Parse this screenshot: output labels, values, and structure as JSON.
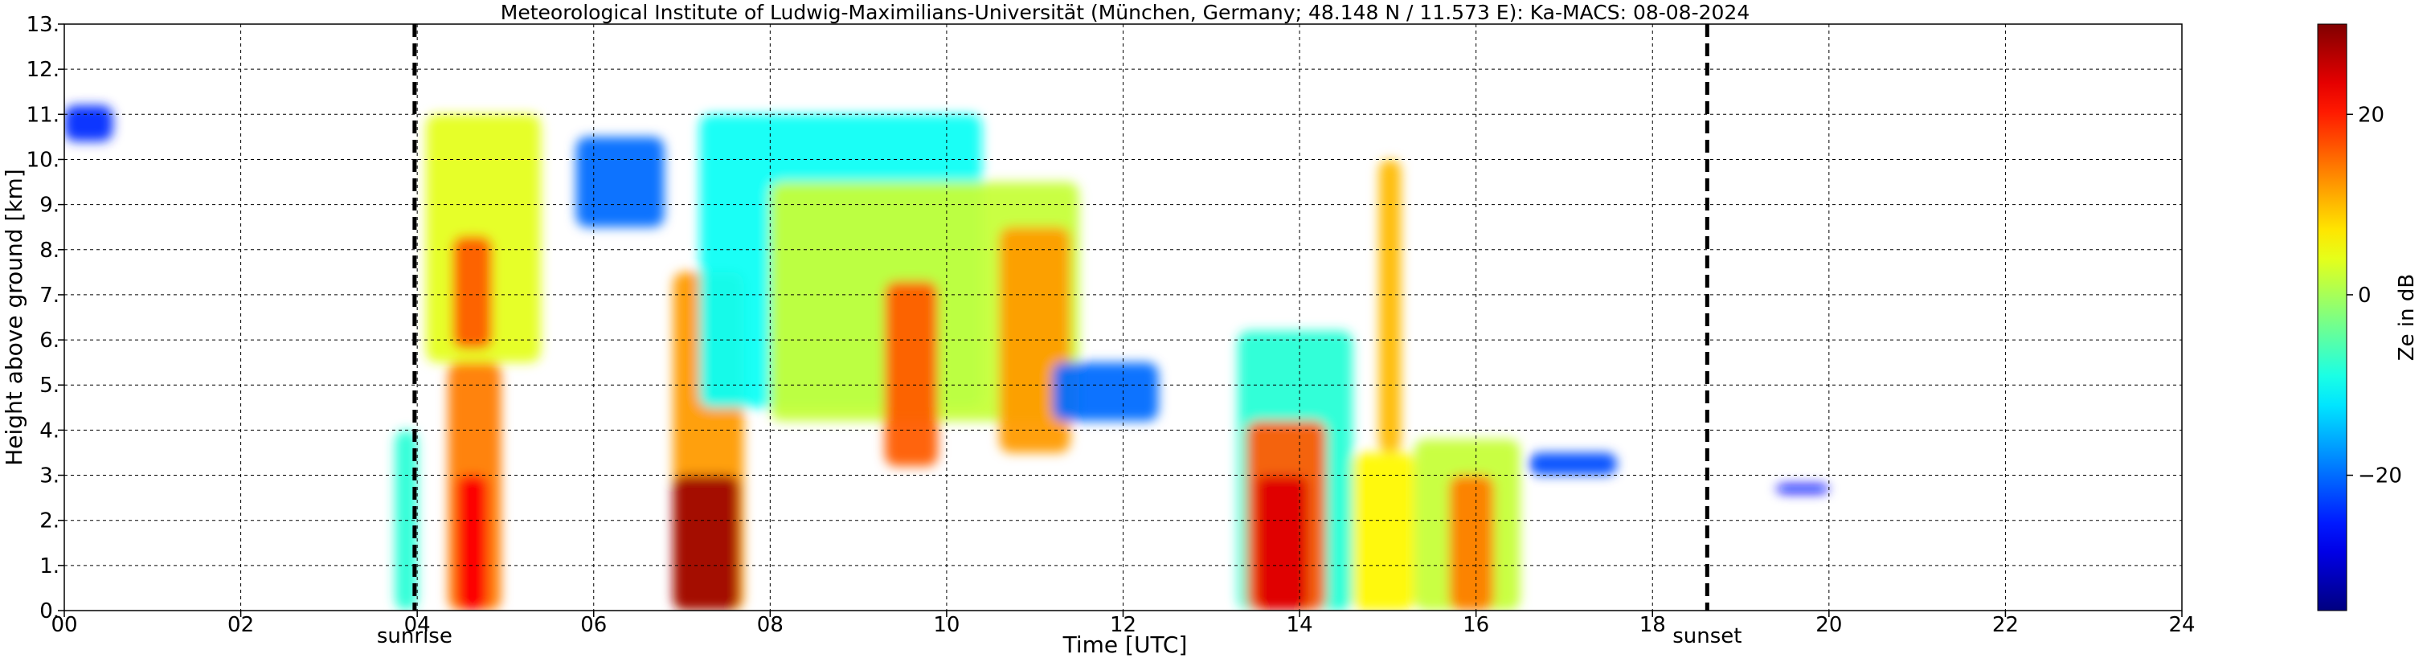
{
  "chart_data": [
    {
      "type": "heatmap",
      "title": "Meteorological Institute of Ludwig-Maximilians-Universität (München, Germany; 48.148 N / 11.573 E):    Ka-MACS: 08-08-2024",
      "xlabel": "Time [UTC]",
      "ylabel": "Height above ground [km]",
      "xlim": [
        0,
        24
      ],
      "ylim": [
        0,
        13
      ],
      "x_ticks": [
        "00",
        "02",
        "04",
        "06",
        "08",
        "10",
        "12",
        "14",
        "16",
        "18",
        "20",
        "22",
        "24"
      ],
      "y_ticks": [
        "0.",
        "1.",
        "2.",
        "3.",
        "4.",
        "5.",
        "6.",
        "7.",
        "8.",
        "9.",
        "10.",
        "11.",
        "12.",
        "13."
      ],
      "grid": "dashed, every 2 h on x and every 1 km on y",
      "colormap": "jet",
      "annotations": [
        {
          "label": "sunrise",
          "x": 3.97,
          "style": "dashed vertical line"
        },
        {
          "label": "sunset",
          "x": 18.62,
          "style": "dashed vertical line"
        }
      ],
      "echoes": [
        {
          "t0": 0.0,
          "t1": 0.55,
          "z0": 10.4,
          "z1": 11.2,
          "ze": -24
        },
        {
          "t0": 3.75,
          "t1": 4.0,
          "z0": 0.0,
          "z1": 4.0,
          "ze": -8
        },
        {
          "t0": 4.1,
          "t1": 5.4,
          "z0": 5.5,
          "z1": 11.0,
          "ze": 4
        },
        {
          "t0": 4.4,
          "t1": 4.85,
          "z0": 5.8,
          "z1": 8.3,
          "ze": 16
        },
        {
          "t0": 4.35,
          "t1": 4.95,
          "z0": 0.0,
          "z1": 5.5,
          "ze": 14
        },
        {
          "t0": 4.45,
          "t1": 4.8,
          "z0": 0.0,
          "z1": 3.0,
          "ze": 22
        },
        {
          "t0": 5.8,
          "t1": 6.8,
          "z0": 8.5,
          "z1": 10.5,
          "ze": -20
        },
        {
          "t0": 6.9,
          "t1": 7.7,
          "z0": 0.0,
          "z1": 7.5,
          "ze": 12
        },
        {
          "t0": 6.9,
          "t1": 7.65,
          "z0": 0.0,
          "z1": 3.0,
          "ze": 28
        },
        {
          "t0": 7.2,
          "t1": 10.4,
          "z0": 4.5,
          "z1": 11.0,
          "ze": -10
        },
        {
          "t0": 8.0,
          "t1": 11.5,
          "z0": 4.2,
          "z1": 9.5,
          "ze": 2
        },
        {
          "t0": 9.3,
          "t1": 9.9,
          "z0": 3.2,
          "z1": 7.3,
          "ze": 16
        },
        {
          "t0": 10.6,
          "t1": 11.4,
          "z0": 3.5,
          "z1": 8.5,
          "ze": 12
        },
        {
          "t0": 11.2,
          "t1": 12.4,
          "z0": 4.2,
          "z1": 5.5,
          "ze": -20
        },
        {
          "t0": 13.3,
          "t1": 14.6,
          "z0": 0.0,
          "z1": 6.2,
          "ze": -8
        },
        {
          "t0": 13.4,
          "t1": 14.3,
          "z0": 0.0,
          "z1": 4.2,
          "ze": 16
        },
        {
          "t0": 13.5,
          "t1": 14.1,
          "z0": 0.0,
          "z1": 3.0,
          "ze": 24
        },
        {
          "t0": 14.6,
          "t1": 15.3,
          "z0": 0.0,
          "z1": 3.5,
          "ze": 6
        },
        {
          "t0": 14.9,
          "t1": 15.15,
          "z0": 3.5,
          "z1": 10.0,
          "ze": 10
        },
        {
          "t0": 15.3,
          "t1": 16.5,
          "z0": 0.0,
          "z1": 3.8,
          "ze": 2
        },
        {
          "t0": 15.7,
          "t1": 16.2,
          "z0": 0.0,
          "z1": 3.0,
          "ze": 14
        },
        {
          "t0": 16.6,
          "t1": 17.6,
          "z0": 3.0,
          "z1": 3.5,
          "ze": -22
        },
        {
          "t0": 19.4,
          "t1": 20.0,
          "z0": 2.6,
          "z1": 2.8,
          "ze": -26
        }
      ]
    },
    {
      "type": "colorbar",
      "label": "Ze in dB",
      "range": [
        -35,
        30
      ],
      "ticks": [
        "20",
        "0",
        "−20"
      ],
      "tick_values": [
        20,
        0,
        -20
      ]
    }
  ]
}
